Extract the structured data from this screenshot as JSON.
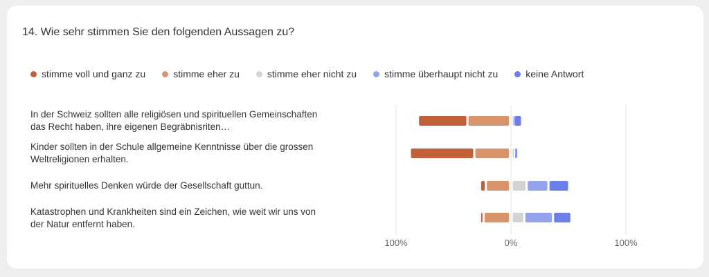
{
  "question": "14. Wie sehr stimmen Sie den folgenden Aussagen zu?",
  "chart_data": {
    "type": "bar",
    "subtype": "diverging-stacked",
    "legend_position": "top",
    "series": [
      {
        "name": "stimme voll und ganz zu",
        "color": "#c0613a"
      },
      {
        "name": "stimme eher zu",
        "color": "#d9946c"
      },
      {
        "name": "stimme eher nicht zu",
        "color": "#d3d3d3"
      },
      {
        "name": "stimme überhaupt nicht zu",
        "color": "#95a3ec"
      },
      {
        "name": "keine Antwort",
        "color": "#6c7ee8"
      }
    ],
    "categories": [
      "In der Schweiz sollten alle religiösen und spirituellen Gemeinschaften das Recht haben, ihre eigenen Begräbnisriten…",
      "Kinder sollten in der Schule allgemeine Kenntnisse über die grossen Weltreligionen erhalten.",
      "Mehr spirituelles Denken würde der Gesellschaft guttun.",
      "Katastrophen und Krankheiten sind ein Zeichen, wie weit wir uns von der Natur entfernt haben."
    ],
    "values": [
      [
        43,
        37,
        1,
        1,
        7
      ],
      [
        56,
        31,
        2,
        1,
        1
      ],
      [
        5,
        21,
        13,
        19,
        18
      ],
      [
        3,
        23,
        11,
        25,
        16
      ]
    ],
    "x_ticks": [
      "100%",
      "0%",
      "100%"
    ],
    "xlim": [
      -100,
      100
    ],
    "grid": true
  }
}
